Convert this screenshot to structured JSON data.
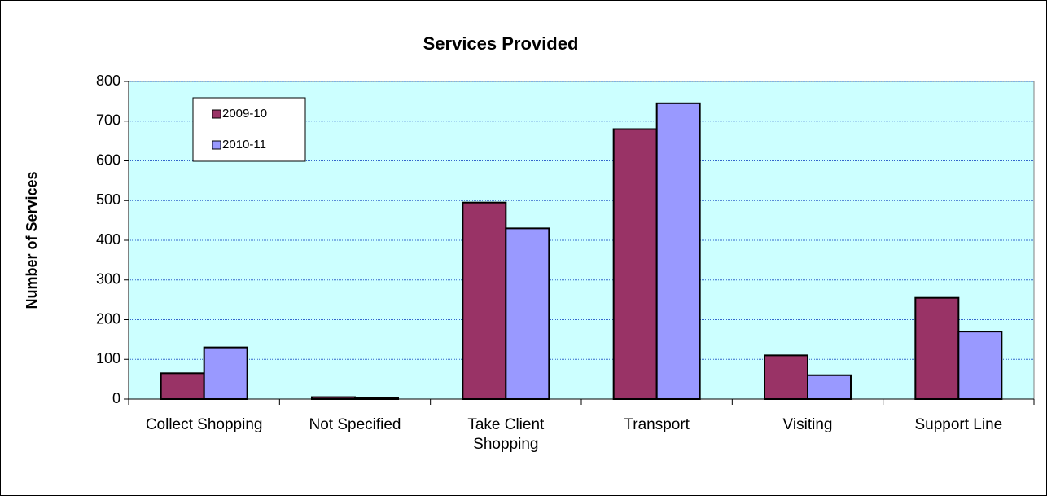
{
  "chart_data": {
    "type": "bar",
    "title": "Services Provided",
    "y_label": "Number of Services",
    "categories": [
      "Collect Shopping",
      "Not Specified",
      "Take Client Shopping",
      "Transport",
      "Visiting",
      "Support Line"
    ],
    "series": [
      {
        "name": "2009-10",
        "color": "#993366",
        "values": [
          65,
          5,
          495,
          680,
          110,
          255
        ]
      },
      {
        "name": "2010-11",
        "color": "#9999ff",
        "values": [
          130,
          4,
          430,
          745,
          60,
          170
        ]
      }
    ],
    "ylim": [
      0,
      800
    ],
    "yticks": [
      0,
      100,
      200,
      300,
      400,
      500,
      600,
      700,
      800
    ],
    "grid": true,
    "plot_background": "#ccffff",
    "legend": "top-left"
  }
}
